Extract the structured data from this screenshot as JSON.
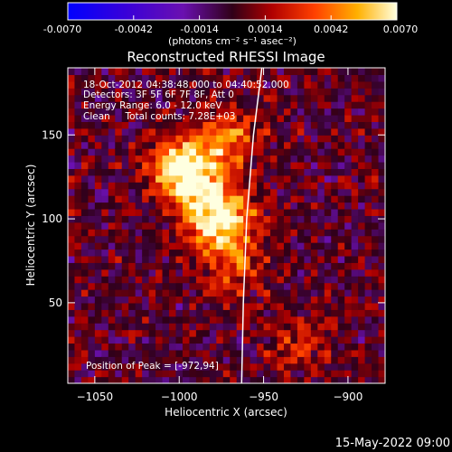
{
  "colorbar": {
    "ticks": [
      "-0.0070",
      "-0.0042",
      "-0.0014",
      "0.0014",
      "0.0042",
      "0.0070"
    ],
    "units": "(photons cm⁻² s⁻¹ asec⁻²)",
    "range": [
      -0.007,
      0.007
    ]
  },
  "chart_data": {
    "type": "heatmap",
    "title": "Reconstructed RHESSI Image",
    "xlabel": "Heliocentric X (arcsec)",
    "ylabel": "Heliocentric Y (arcsec)",
    "xlim": [
      -1066,
      -878
    ],
    "ylim": [
      2,
      190
    ],
    "xticks": [
      {
        "value": -1050,
        "label": "−1050"
      },
      {
        "value": -1000,
        "label": "−1000"
      },
      {
        "value": -950,
        "label": "−950"
      },
      {
        "value": -900,
        "label": "−900"
      }
    ],
    "yticks": [
      {
        "value": 50,
        "label": "50"
      },
      {
        "value": 100,
        "label": "100"
      },
      {
        "value": 150,
        "label": "150"
      }
    ],
    "peak": [
      -972,
      94
    ],
    "sources": [
      {
        "x": -975,
        "y": 98,
        "sigma": 14,
        "value": 0.0066
      },
      {
        "x": -1003,
        "y": 131,
        "sigma": 11,
        "value": 0.0054
      },
      {
        "x": -985,
        "y": 138,
        "sigma": 13,
        "value": 0.0036
      },
      {
        "x": -968,
        "y": 150,
        "sigma": 12,
        "value": 0.003
      },
      {
        "x": -990,
        "y": 115,
        "sigma": 12,
        "value": 0.004
      },
      {
        "x": -965,
        "y": 70,
        "sigma": 12,
        "value": 0.0024
      },
      {
        "x": -930,
        "y": 25,
        "sigma": 12,
        "value": 0.0022
      }
    ],
    "limb_curve": [
      [
        -951,
        190
      ],
      [
        -956,
        150
      ],
      [
        -960,
        100
      ],
      [
        -962,
        50
      ],
      [
        -963,
        2
      ]
    ]
  },
  "annotations": {
    "date_range": "18-Oct-2012 04:38:48.000 to 04:40:52.000",
    "detectors": "Detectors: 3F 5F 6F 7F 8F, Att 0",
    "energy": "Energy Range: 6.0 - 12.0 keV",
    "clean": "Clean     Total counts: 7.28E+03",
    "peak_label": "Position of Peak = [-972,94]"
  },
  "footer": {
    "timestamp": "15-May-2022 09:00"
  }
}
